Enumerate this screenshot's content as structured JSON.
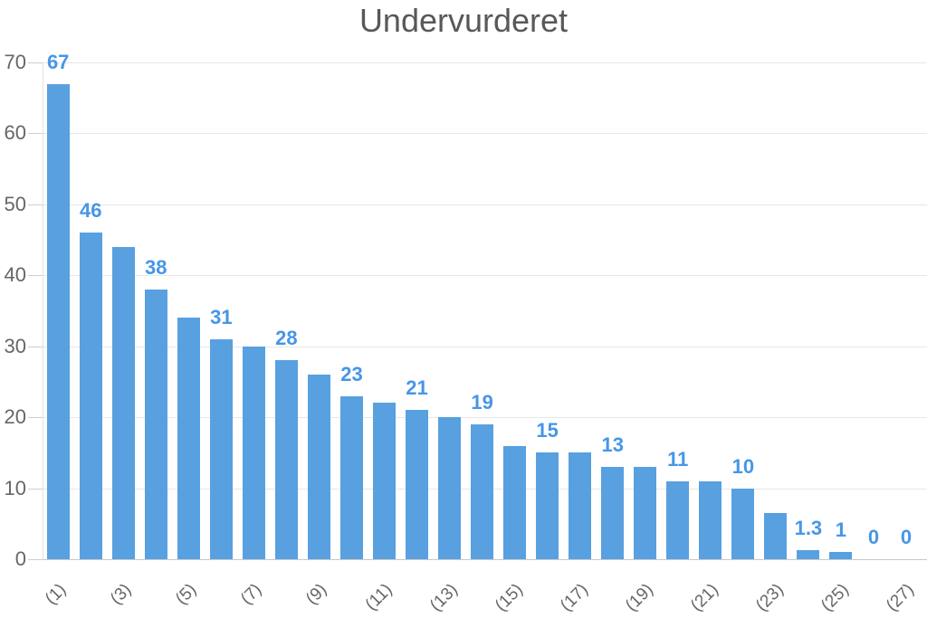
{
  "chart_data": {
    "type": "bar",
    "title": "Undervurderet",
    "xlabel": "",
    "ylabel": "",
    "values": [
      67,
      46,
      44,
      38,
      34,
      31,
      30,
      28,
      26,
      23,
      22,
      21,
      20,
      19,
      16,
      15,
      15,
      13,
      13,
      11,
      11,
      10,
      6.5,
      1.3,
      1,
      0,
      0
    ],
    "bar_labels": [
      "67",
      "46",
      "",
      "38",
      "",
      "31",
      "",
      "28",
      "",
      "23",
      "",
      "21",
      "",
      "19",
      "",
      "15",
      "",
      "13",
      "",
      "11",
      "",
      "10",
      "",
      "1.3",
      "1",
      "0",
      "0"
    ],
    "x_tick_labels": [
      "(1)",
      "",
      "(3)",
      "",
      "(5)",
      "",
      "(7)",
      "",
      "(9)",
      "",
      "(11)",
      "",
      "(13)",
      "",
      "(15)",
      "",
      "(17)",
      "",
      "(19)",
      "",
      "(21)",
      "",
      "(23)",
      "",
      "(25)",
      "",
      "(27)"
    ],
    "y_ticks": [
      0,
      10,
      20,
      30,
      40,
      50,
      60,
      70
    ],
    "ylim": [
      0,
      70
    ],
    "grid": true,
    "legend": false,
    "colors": {
      "bar": "#58a0e0",
      "bar_label": "#4696e8",
      "title": "#58585a",
      "axis_text": "#666666",
      "gridline": "#e7e7e7",
      "baseline": "#c9c9c9",
      "tick": "#cfcfcf",
      "axis_line": "#e2e2e2",
      "background": "#ffffff"
    }
  }
}
